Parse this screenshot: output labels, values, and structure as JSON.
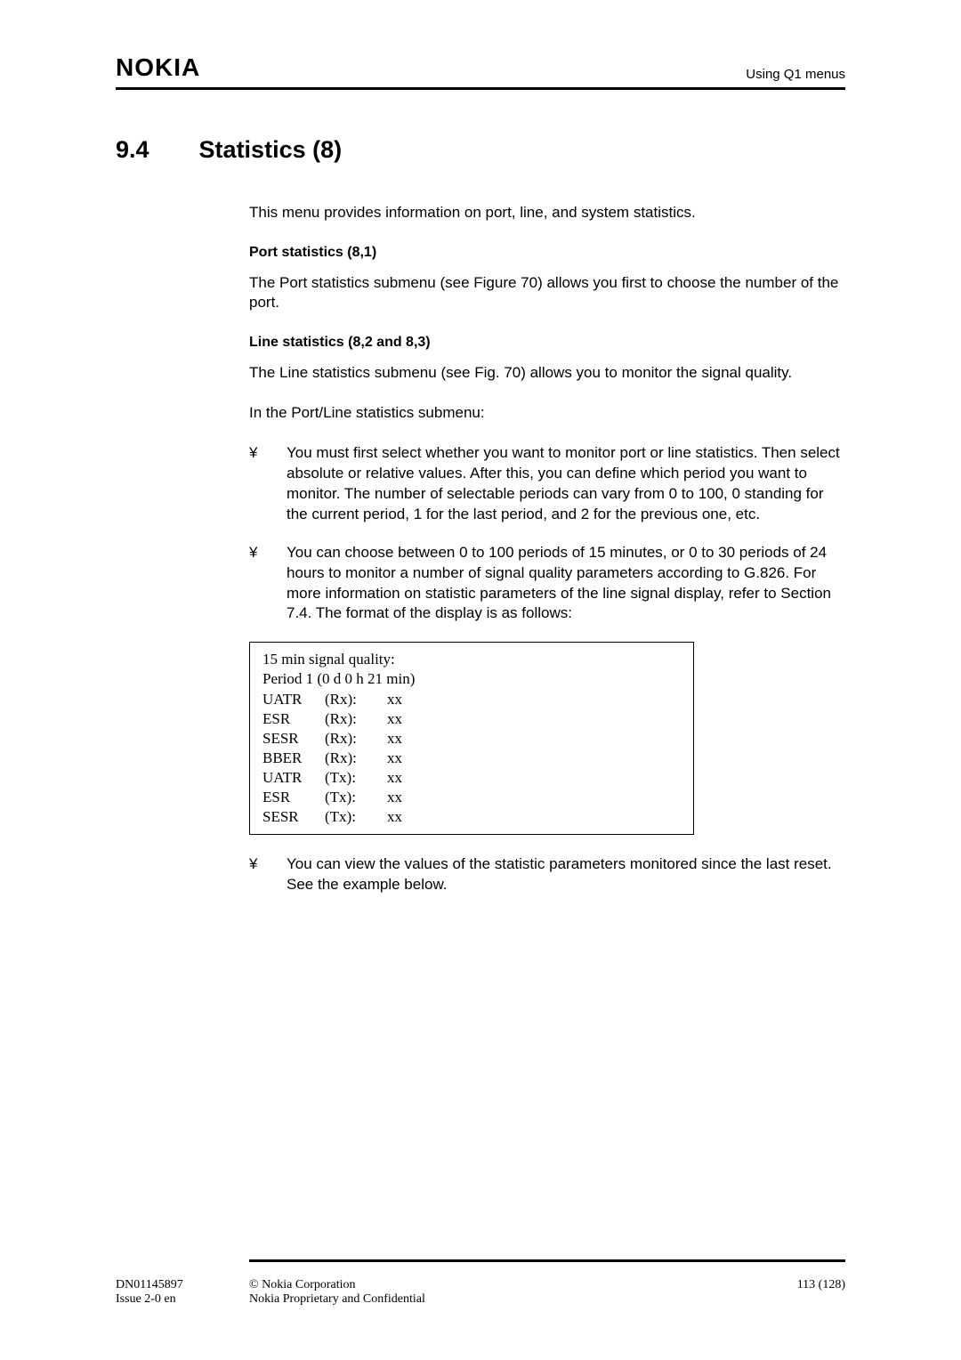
{
  "header": {
    "logo": "NOKIA",
    "right": "Using Q1 menus"
  },
  "section": {
    "number": "9.4",
    "title": "Statistics (8)"
  },
  "intro": "This menu provides information on port, line, and system statistics.",
  "port": {
    "heading": "Port statistics (8,1)",
    "text": "The Port statistics submenu (see Figure 70) allows you first to choose the number of the port."
  },
  "line": {
    "heading": "Line statistics (8,2 and 8,3)",
    "text": "The Line statistics submenu (see Fig. 70) allows you to monitor the signal quality."
  },
  "submenu_intro": "In the Port/Line statistics submenu:",
  "bullets": {
    "b1": "You must first select whether you want to monitor port or line statistics. Then select absolute or relative values. After this, you can define which period you want to monitor. The number of selectable periods can vary from 0 to 100, 0 standing for the current period, 1 for the last period, and 2 for the previous one, etc.",
    "b2": "You can choose between 0 to 100 periods of 15 minutes, or 0 to 30 periods of 24 hours to monitor a number of signal quality parameters according to G.826. For more information on statistic parameters of the line signal display, refer to Section 7.4. The format of the display is as follows:",
    "b3": "You can view the values of the statistic parameters monitored since the last reset. See the example below."
  },
  "bullet_glyph": "¥",
  "display": {
    "title": "15 min signal quality:",
    "period": "Period 1 (0 d 0 h 21 min)",
    "rows": [
      {
        "c1": "UATR",
        "c2": "(Rx):",
        "c3": "xx"
      },
      {
        "c1": "ESR",
        "c2": "(Rx):",
        "c3": "xx"
      },
      {
        "c1": "SESR",
        "c2": "(Rx):",
        "c3": "xx"
      },
      {
        "c1": "BBER",
        "c2": "(Rx):",
        "c3": "xx"
      },
      {
        "c1": "UATR",
        "c2": "(Tx):",
        "c3": "xx"
      },
      {
        "c1": "ESR",
        "c2": "(Tx):",
        "c3": "xx"
      },
      {
        "c1": "SESR",
        "c2": "(Tx):",
        "c3": "xx"
      }
    ]
  },
  "footer": {
    "doc_id": "DN01145897",
    "issue": "Issue 2-0 en",
    "copyright": "© Nokia Corporation",
    "confidential": "Nokia Proprietary and Confidential",
    "page": "113 (128)"
  }
}
